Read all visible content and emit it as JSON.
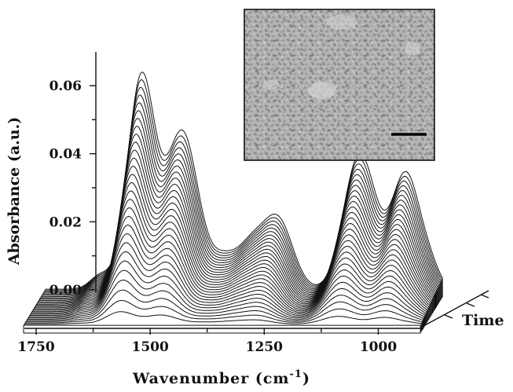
{
  "chart_data": {
    "type": "line",
    "style": "3d-waterfall",
    "xlabel": "Wavenumber (cm",
    "xlabel_superscript": "-1",
    "xlabel_close": ")",
    "ylabel": "Absorbance (a.u.)",
    "depth_label": "Time",
    "x_range": [
      1750,
      880
    ],
    "x_reversed": true,
    "xticks": [
      1750,
      1500,
      1250,
      1000
    ],
    "xtick_labels": [
      "1750",
      "1500",
      "1250",
      "1000"
    ],
    "ylim": [
      0,
      0.07
    ],
    "yticks": [
      0.0,
      0.02,
      0.04,
      0.06
    ],
    "ytick_labels": [
      "0.00",
      "0.02",
      "0.04",
      "0.06"
    ],
    "n_spectra": 30,
    "bands": [
      {
        "center": 1630,
        "width": 22,
        "amp_final": 0.004
      },
      {
        "center": 1540,
        "width": 30,
        "amp_final": 0.062
      },
      {
        "center": 1450,
        "width": 35,
        "amp_final": 0.046
      },
      {
        "center": 1360,
        "width": 28,
        "amp_final": 0.008
      },
      {
        "center": 1300,
        "width": 30,
        "amp_final": 0.012
      },
      {
        "center": 1240,
        "width": 32,
        "amp_final": 0.02
      },
      {
        "center": 1080,
        "width": 30,
        "amp_final": 0.012
      },
      {
        "center": 1060,
        "width": 32,
        "amp_final": 0.022
      },
      {
        "center": 1040,
        "width": 30,
        "amp_final": 0.01
      },
      {
        "center": 960,
        "width": 32,
        "amp_final": 0.034
      },
      {
        "center": 905,
        "width": 20,
        "amp_final": 0.004
      }
    ],
    "grid": false,
    "legend": "none",
    "inset": {
      "type": "micrograph",
      "scale_bar": true
    }
  }
}
